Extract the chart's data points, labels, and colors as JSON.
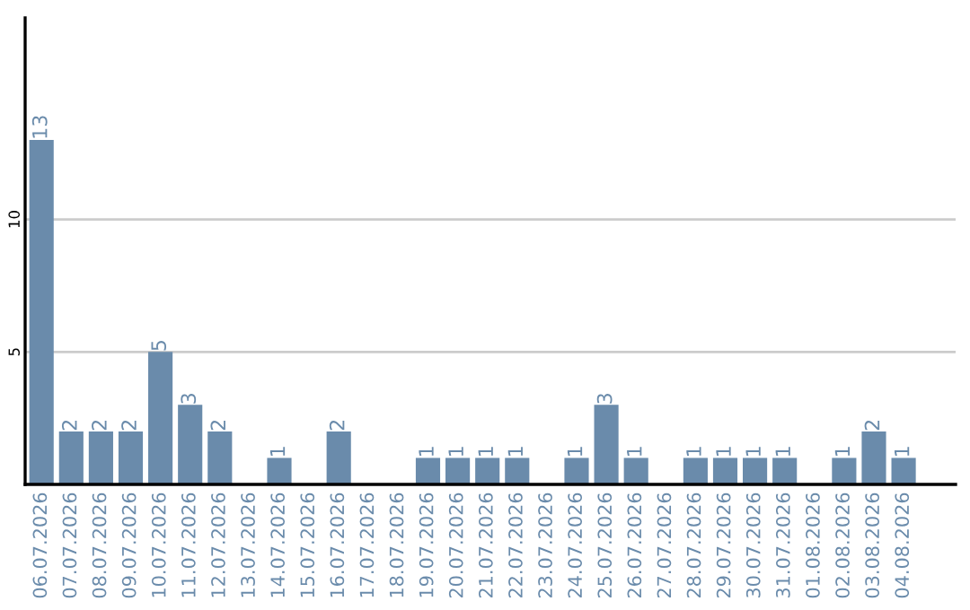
{
  "chart_data": {
    "type": "bar",
    "categories": [
      "06.07.2026",
      "07.07.2026",
      "08.07.2026",
      "09.07.2026",
      "10.07.2026",
      "11.07.2026",
      "12.07.2026",
      "13.07.2026",
      "14.07.2026",
      "15.07.2026",
      "16.07.2026",
      "17.07.2026",
      "18.07.2026",
      "19.07.2026",
      "20.07.2026",
      "21.07.2026",
      "22.07.2026",
      "23.07.2026",
      "24.07.2026",
      "25.07.2026",
      "26.07.2026",
      "27.07.2026",
      "28.07.2026",
      "29.07.2026",
      "30.07.2026",
      "31.07.2026",
      "01.08.2026",
      "02.08.2026",
      "03.08.2026",
      "04.08.2026"
    ],
    "values": [
      13,
      2,
      2,
      2,
      5,
      3,
      2,
      0,
      1,
      0,
      2,
      0,
      0,
      1,
      1,
      1,
      1,
      0,
      1,
      3,
      1,
      0,
      1,
      1,
      1,
      1,
      0,
      1,
      2,
      1
    ],
    "value_labels": [
      "13",
      "2",
      "2",
      "2",
      "5",
      "3",
      "2",
      null,
      "1",
      null,
      "2",
      null,
      null,
      "1",
      "1",
      "1",
      "1",
      null,
      "1",
      "3",
      "1",
      null,
      "1",
      "1",
      "1",
      "1",
      null,
      "1",
      "2",
      "1"
    ],
    "color": "#6a8bab",
    "ylim": [
      0,
      17.6
    ],
    "yticks": [
      5,
      10
    ],
    "grid": "y",
    "legend": false
  }
}
